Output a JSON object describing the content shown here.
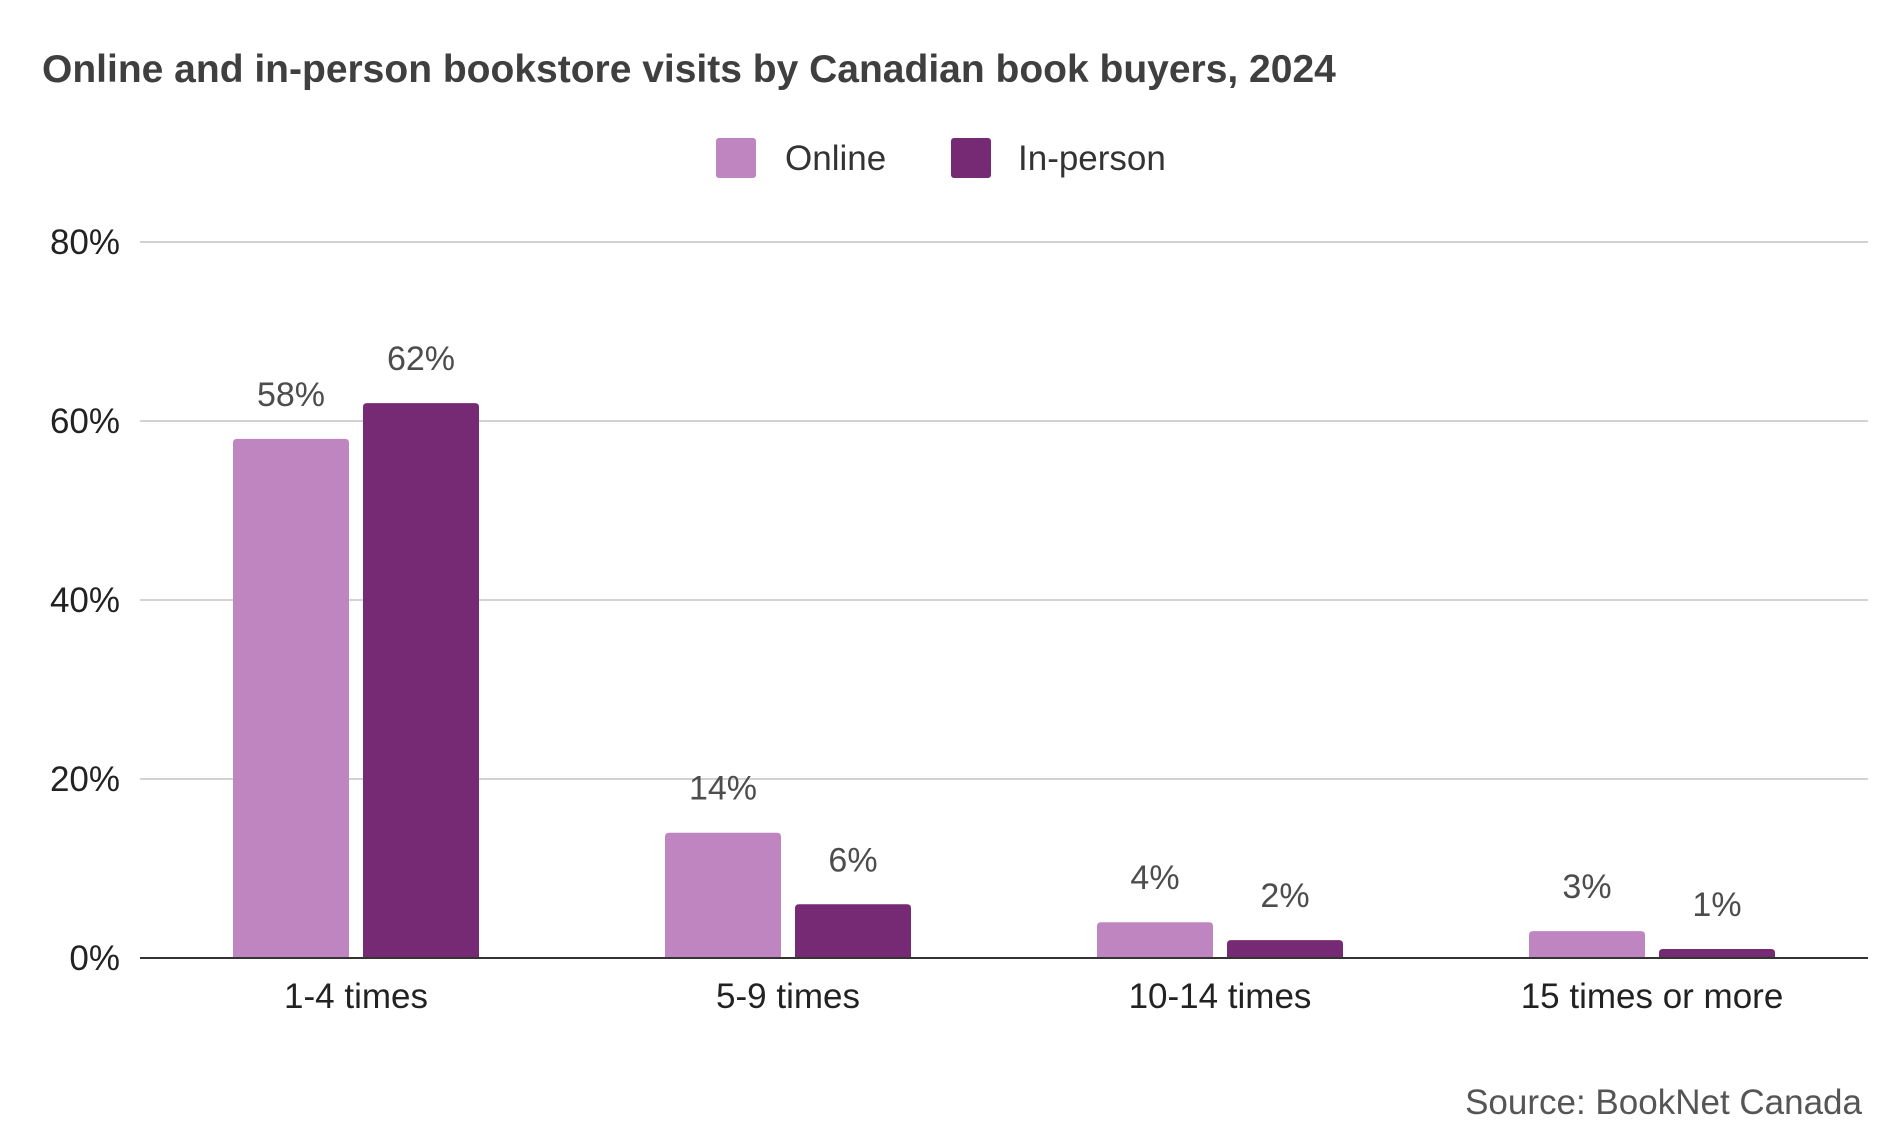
{
  "chart_data": {
    "type": "bar",
    "title": "Online and in-person bookstore visits by Canadian book buyers, 2024",
    "categories": [
      "1-4 times",
      "5-9 times",
      "10-14 times",
      "15 times or more"
    ],
    "series": [
      {
        "name": "Online",
        "color": "#bf85c0",
        "values": [
          58,
          14,
          4,
          3
        ],
        "labels": [
          "58%",
          "14%",
          "4%",
          "3%"
        ]
      },
      {
        "name": "In-person",
        "color": "#762a73",
        "values": [
          62,
          6,
          2,
          1
        ],
        "labels": [
          "62%",
          "6%",
          "2%",
          "1%"
        ]
      }
    ],
    "ylim": [
      0,
      80
    ],
    "yticks": [
      0,
      20,
      40,
      60,
      80
    ],
    "ytick_labels": [
      "0%",
      "20%",
      "40%",
      "60%",
      "80%"
    ],
    "grid": true,
    "legend_position": "top-center",
    "source": "Source: BookNet Canada"
  }
}
